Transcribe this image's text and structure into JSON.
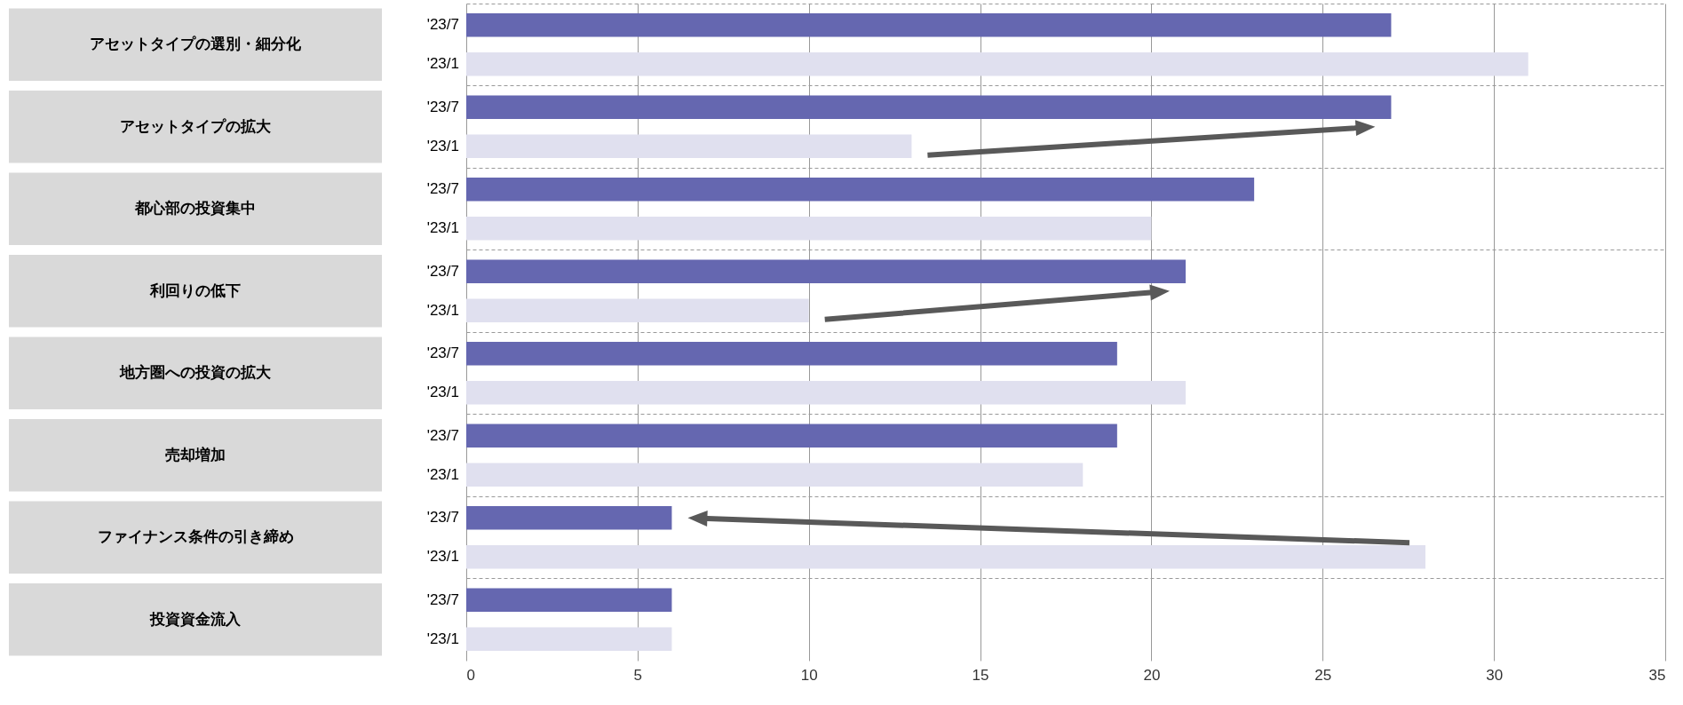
{
  "chart_data": {
    "type": "bar",
    "orientation": "horizontal",
    "categories": [
      "アセットタイプの選別・細分化",
      "アセットタイプの拡大",
      "都心部の投資集中",
      "利回りの低下",
      "地方圏への投資の拡大",
      "売却増加",
      "ファイナンス条件の引き締め",
      "投資資金流入"
    ],
    "series": [
      {
        "name": "'23/7",
        "color": "#6567b0",
        "values": [
          27,
          27,
          23,
          21,
          19,
          19,
          6,
          6
        ]
      },
      {
        "name": "'23/1",
        "color": "#e0e0ef",
        "values": [
          31,
          13,
          20,
          10,
          21,
          18,
          28,
          6
        ]
      }
    ],
    "xlim": [
      0,
      35
    ],
    "xticks": [
      0,
      5,
      10,
      15,
      20,
      25,
      30,
      35
    ],
    "grid": true
  }
}
